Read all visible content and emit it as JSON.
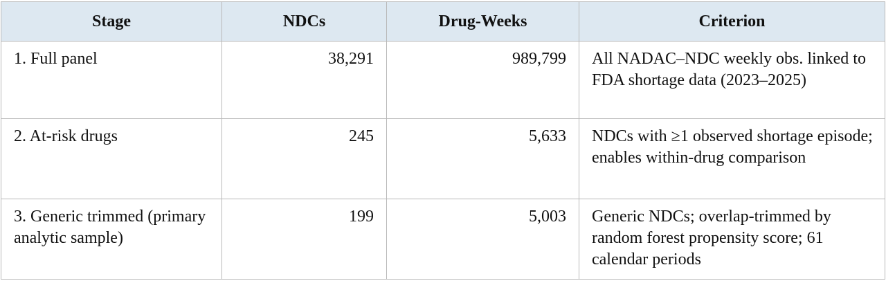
{
  "table": {
    "header": [
      "Stage",
      "NDCs",
      "Drug-Weeks",
      "Criterion"
    ],
    "rows": [
      [
        "1. Full panel",
        "38,291",
        "989,799",
        "All NADAC–NDC weekly obs. linked to FDA shortage data (2023–2025)"
      ],
      [
        "2. At-risk drugs",
        "245",
        "5,633",
        "NDCs with ≥1 observed shortage episode; enables within-drug comparison"
      ],
      [
        "3. Generic trimmed (primary analytic sample)",
        "199",
        "5,003",
        "Generic NDCs; overlap-trimmed by random forest propensity score; 61 calendar periods"
      ]
    ]
  }
}
